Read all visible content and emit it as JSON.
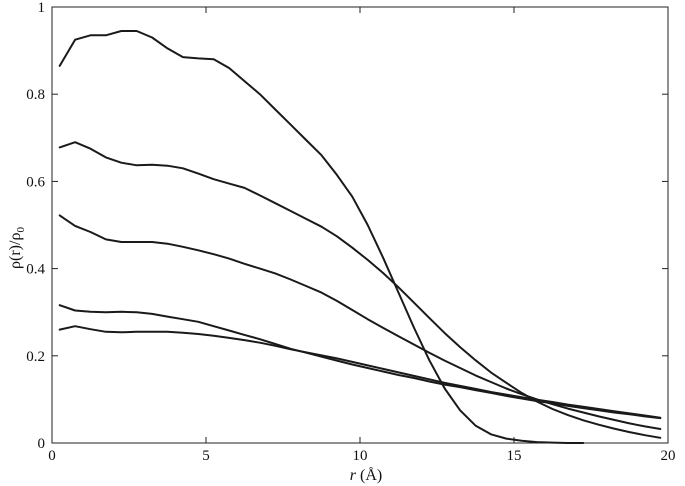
{
  "chart_data": {
    "type": "line",
    "title": "",
    "xlabel": {
      "var": "r",
      "unit": " (Å)"
    },
    "ylabel": {
      "text": "ρ(r)/ρ",
      "sub": "0"
    },
    "xlim": [
      0,
      20
    ],
    "ylim": [
      0,
      1
    ],
    "xticks": [
      0,
      5,
      10,
      15,
      20
    ],
    "yticks": [
      0,
      0.2,
      0.4,
      0.6,
      0.8,
      1
    ],
    "xtick_labels": [
      "0",
      "5",
      "10",
      "15",
      "20"
    ],
    "ytick_labels": [
      "0",
      "0.2",
      "0.4",
      "0.6",
      "0.8",
      "1"
    ],
    "grid": false,
    "legend": "none",
    "line_color": "#1a1a1a",
    "series": [
      {
        "x": [
          0.25,
          0.75,
          1.25,
          1.75,
          2.25,
          2.75,
          3.25,
          3.75,
          4.25,
          4.75,
          5.25,
          5.75,
          6.25,
          6.75,
          7.25,
          7.75,
          8.25,
          8.75,
          9.25,
          9.75,
          10.25,
          10.75,
          11.25,
          11.75,
          12.25,
          12.75,
          13.25,
          13.75,
          14.25,
          14.75,
          15.25,
          15.75,
          16.25,
          16.75,
          17.25
        ],
        "y": [
          0.865,
          0.925,
          0.935,
          0.935,
          0.945,
          0.945,
          0.93,
          0.905,
          0.885,
          0.882,
          0.88,
          0.86,
          0.83,
          0.8,
          0.765,
          0.73,
          0.695,
          0.66,
          0.615,
          0.565,
          0.5,
          0.425,
          0.345,
          0.265,
          0.19,
          0.125,
          0.075,
          0.04,
          0.02,
          0.01,
          0.005,
          0.002,
          0.001,
          0.0,
          0.0
        ]
      },
      {
        "x": [
          0.25,
          0.75,
          1.25,
          1.75,
          2.25,
          2.75,
          3.25,
          3.75,
          4.25,
          4.75,
          5.25,
          5.75,
          6.25,
          6.75,
          7.25,
          7.75,
          8.25,
          8.75,
          9.25,
          9.75,
          10.25,
          10.75,
          11.25,
          11.75,
          12.25,
          12.75,
          13.25,
          13.75,
          14.25,
          14.75,
          15.25,
          15.75,
          16.25,
          16.75,
          17.25,
          17.75,
          18.25,
          18.75,
          19.25,
          19.75
        ],
        "y": [
          0.678,
          0.69,
          0.675,
          0.655,
          0.643,
          0.637,
          0.638,
          0.636,
          0.63,
          0.618,
          0.605,
          0.595,
          0.585,
          0.568,
          0.55,
          0.532,
          0.514,
          0.496,
          0.474,
          0.448,
          0.42,
          0.39,
          0.357,
          0.322,
          0.287,
          0.252,
          0.22,
          0.19,
          0.162,
          0.138,
          0.115,
          0.095,
          0.078,
          0.064,
          0.052,
          0.042,
          0.033,
          0.025,
          0.018,
          0.012
        ]
      },
      {
        "x": [
          0.25,
          0.75,
          1.25,
          1.75,
          2.25,
          2.75,
          3.25,
          3.75,
          4.25,
          4.75,
          5.25,
          5.75,
          6.25,
          6.75,
          7.25,
          7.75,
          8.25,
          8.75,
          9.25,
          9.75,
          10.25,
          10.75,
          11.25,
          11.75,
          12.25,
          12.75,
          13.25,
          13.75,
          14.25,
          14.75,
          15.25,
          15.75,
          16.25,
          16.75,
          17.25,
          17.75,
          18.25,
          18.75,
          19.25,
          19.75
        ],
        "y": [
          0.522,
          0.498,
          0.484,
          0.467,
          0.461,
          0.461,
          0.461,
          0.457,
          0.45,
          0.442,
          0.433,
          0.423,
          0.411,
          0.4,
          0.389,
          0.375,
          0.36,
          0.345,
          0.326,
          0.305,
          0.284,
          0.264,
          0.245,
          0.226,
          0.207,
          0.189,
          0.172,
          0.155,
          0.14,
          0.125,
          0.112,
          0.1,
          0.089,
          0.079,
          0.07,
          0.061,
          0.053,
          0.045,
          0.038,
          0.032
        ]
      },
      {
        "x": [
          0.25,
          0.75,
          1.25,
          1.75,
          2.25,
          2.75,
          3.25,
          3.75,
          4.25,
          4.75,
          5.25,
          5.75,
          6.25,
          6.75,
          7.25,
          7.75,
          8.25,
          8.75,
          9.25,
          9.75,
          10.25,
          10.75,
          11.25,
          11.75,
          12.25,
          12.75,
          13.25,
          13.75,
          14.25,
          14.75,
          15.25,
          15.75,
          16.25,
          16.75,
          17.25,
          17.75,
          18.25,
          18.75,
          19.25,
          19.75
        ],
        "y": [
          0.316,
          0.304,
          0.301,
          0.3,
          0.301,
          0.3,
          0.296,
          0.29,
          0.284,
          0.278,
          0.268,
          0.258,
          0.248,
          0.238,
          0.227,
          0.216,
          0.207,
          0.198,
          0.189,
          0.18,
          0.172,
          0.164,
          0.156,
          0.149,
          0.141,
          0.134,
          0.128,
          0.121,
          0.115,
          0.108,
          0.102,
          0.096,
          0.091,
          0.085,
          0.08,
          0.075,
          0.07,
          0.066,
          0.061,
          0.057
        ]
      },
      {
        "x": [
          0.25,
          0.75,
          1.25,
          1.75,
          2.25,
          2.75,
          3.25,
          3.75,
          4.25,
          4.75,
          5.25,
          5.75,
          6.25,
          6.75,
          7.25,
          7.75,
          8.25,
          8.75,
          9.25,
          9.75,
          10.25,
          10.75,
          11.25,
          11.75,
          12.25,
          12.75,
          13.25,
          13.75,
          14.25,
          14.75,
          15.25,
          15.75,
          16.25,
          16.75,
          17.25,
          17.75,
          18.25,
          18.75,
          19.25,
          19.75
        ],
        "y": [
          0.26,
          0.268,
          0.261,
          0.255,
          0.254,
          0.255,
          0.255,
          0.255,
          0.253,
          0.25,
          0.246,
          0.241,
          0.236,
          0.23,
          0.223,
          0.215,
          0.208,
          0.201,
          0.194,
          0.186,
          0.178,
          0.17,
          0.162,
          0.154,
          0.146,
          0.138,
          0.131,
          0.124,
          0.117,
          0.111,
          0.105,
          0.099,
          0.094,
          0.088,
          0.083,
          0.078,
          0.073,
          0.068,
          0.063,
          0.058
        ]
      }
    ]
  }
}
